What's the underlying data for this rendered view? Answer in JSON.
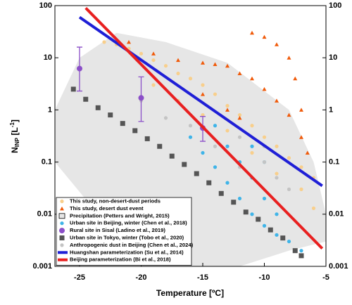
{
  "chart_data": {
    "type": "scatter",
    "xlabel": "Temperature [ºC]",
    "ylabel_parts": [
      "N",
      "INP",
      " [L",
      "-1",
      "]"
    ],
    "xlim": [
      -27,
      -5
    ],
    "xticks": [
      -25,
      -20,
      -15,
      -10,
      -5
    ],
    "ylim": [
      0.001,
      100
    ],
    "yticks": [
      0.001,
      0.01,
      0.1,
      1,
      10,
      100
    ],
    "log_y": true,
    "legend": "lower left",
    "series": [
      {
        "name": "This study, non-desert-dust periods",
        "marker": "circle",
        "color": "#f8cf8c",
        "x": [
          -23,
          -22,
          -21,
          -20,
          -19,
          -18,
          -17,
          -16,
          -15,
          -14,
          -13,
          -12,
          -11,
          -10,
          -9,
          -8,
          -7,
          -6,
          -19,
          -17,
          -15,
          -13,
          -11,
          -9,
          -7,
          -6
        ],
        "y": [
          20,
          18,
          15,
          12,
          9,
          7,
          5,
          4,
          3,
          2,
          1.2,
          0.8,
          0.5,
          0.3,
          0.2,
          0.12,
          0.08,
          0.05,
          3,
          1.5,
          0.8,
          0.4,
          0.15,
          0.06,
          0.03,
          0.013
        ]
      },
      {
        "name": "This study, desert dust event",
        "marker": "triangle",
        "color": "#f05a0a",
        "x": [
          -21,
          -19,
          -17,
          -15,
          -14,
          -13,
          -12,
          -11,
          -10,
          -9,
          -8,
          -7,
          -6.5,
          -11,
          -10,
          -9,
          -8,
          -7.5,
          -7,
          -15,
          -13,
          -12
        ],
        "y": [
          20,
          12,
          9,
          8,
          7.5,
          7,
          5,
          4,
          2.5,
          1.5,
          0.8,
          0.3,
          0.15,
          30,
          25,
          18,
          10,
          4,
          1,
          2,
          1,
          0.7
        ]
      },
      {
        "name": " Precipitation (Petters and Wright, 2015)",
        "marker": "area",
        "color": "#e6e6e6",
        "x": [
          -27,
          -25,
          -22,
          -18,
          -13,
          -8,
          -6,
          -5,
          -5,
          -8,
          -12,
          -20,
          -27
        ],
        "y": [
          1,
          10,
          30,
          20,
          8,
          1,
          0.1,
          0.01,
          0.003,
          0.002,
          0.001,
          0.001,
          0.1
        ]
      },
      {
        "name": "Urban site in Beijing, winter (Chen et al., 2018)",
        "marker": "circle",
        "color": "#3fb4e8",
        "x": [
          -16,
          -15,
          -14,
          -13,
          -12,
          -11,
          -10,
          -9,
          -8,
          -7,
          -13,
          -12,
          -11,
          -10,
          -9,
          -14,
          -11,
          -10
        ],
        "y": [
          0.3,
          0.15,
          0.08,
          0.04,
          0.02,
          0.01,
          0.006,
          0.004,
          0.003,
          0.002,
          0.2,
          0.1,
          0.05,
          0.02,
          0.01,
          0.5,
          0.2,
          0.1
        ]
      },
      {
        "name": "Rural site in Sisal (Ladino et al., 2019)",
        "marker": "errorbar",
        "color": "#8b4fc8",
        "x": [
          -25,
          -20,
          -15
        ],
        "y": [
          6.2,
          1.7,
          0.45
        ],
        "error_low": [
          2.3,
          0.6,
          0.25
        ],
        "error_high": [
          16,
          4.3,
          0.75
        ]
      },
      {
        "name": "Urban site in Tokyo, winter (Tobo et al., 2020)",
        "marker": "square",
        "color": "#555555",
        "x": [
          -25.5,
          -24.5,
          -23.5,
          -22.5,
          -21.5,
          -20.5,
          -19.5,
          -18.5,
          -17.5,
          -16.5,
          -15.5,
          -14.5,
          -13.5,
          -12.5,
          -11.5,
          -10.5,
          -9.5,
          -8.5,
          -7.5,
          -7
        ],
        "y": [
          2.5,
          1.6,
          1.1,
          0.8,
          0.55,
          0.4,
          0.28,
          0.2,
          0.13,
          0.09,
          0.06,
          0.04,
          0.025,
          0.017,
          0.011,
          0.008,
          0.005,
          0.0035,
          0.002,
          0.0016
        ]
      },
      {
        "name": "Anthropogenic dust in Beijing (Chen et al., 2024)",
        "marker": "circle",
        "color": "#c4c4c4",
        "x": [
          -20,
          -18,
          -16,
          -14,
          -12,
          -10,
          -8,
          -12,
          -10,
          -9
        ],
        "y": [
          1.5,
          0.7,
          0.5,
          0.2,
          0.08,
          0.1,
          0.03,
          0.3,
          0.2,
          0.05
        ]
      },
      {
        "name": "Huangshan parameterization (Su et al., 2014)",
        "marker": "line",
        "color": "#1f1fd6",
        "x": [
          -25,
          -5.3
        ],
        "y": [
          60,
          0.035
        ]
      },
      {
        "name": "Beijing parameterization (Bi et al., 2018)",
        "marker": "line",
        "color": "#e82020",
        "x": [
          -24.5,
          -5.3
        ],
        "y": [
          90,
          0.0022
        ]
      }
    ]
  }
}
